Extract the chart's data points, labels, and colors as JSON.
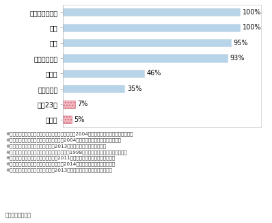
{
  "categories": [
    "ロンドン・パリ",
    "香港",
    "台北",
    "シンガポール",
    "ソウル",
    "ジャカルタ",
    "東京23区",
    "大阪市"
  ],
  "values": [
    100,
    100,
    95,
    93,
    46,
    35,
    7,
    5
  ],
  "bar_colors": [
    "#b8d4e8",
    "#b8d4e8",
    "#b8d4e8",
    "#b8d4e8",
    "#b8d4e8",
    "#b8d4e8",
    "#f4b8c0",
    "#f4b8c0"
  ],
  "bar_hatch": [
    null,
    null,
    null,
    null,
    null,
    null,
    "....",
    "...."
  ],
  "hatch_edge_colors": [
    null,
    null,
    null,
    null,
    null,
    null,
    "#d07080",
    "#d07080"
  ],
  "xlim": [
    0,
    112
  ],
  "footnotes": [
    "※１　ロンドン、パリは海外電力調査会調べによる2004年の状況（ケーブル延長ベース）",
    "※２　香港は国際建設技術協会調べによる2004年の状況（ケーブル延長ベース）",
    "※３　台北は国土交通省調べによる2013年の状況（道路延長ベース）",
    "※４　シンガポールは海外電気事業統計による1998年の状況（ケーブル延長ベース）",
    "※５　ソウルは国土交通省調べによる2011年の状況（ケーブル延長ベース）",
    "※６　ジャカルタは国土交通省調べによる2014年の状況（道路延長ベース）",
    "※７　日本は国土交通省調べによる2013年度末の状況（道路延長ベース）"
  ],
  "source": "資料）国土交通省",
  "background_color": "#ffffff",
  "label_fontsize": 7.0,
  "value_fontsize": 7.0,
  "footnote_fontsize": 5.2,
  "source_fontsize": 5.8,
  "bar_height": 0.5
}
